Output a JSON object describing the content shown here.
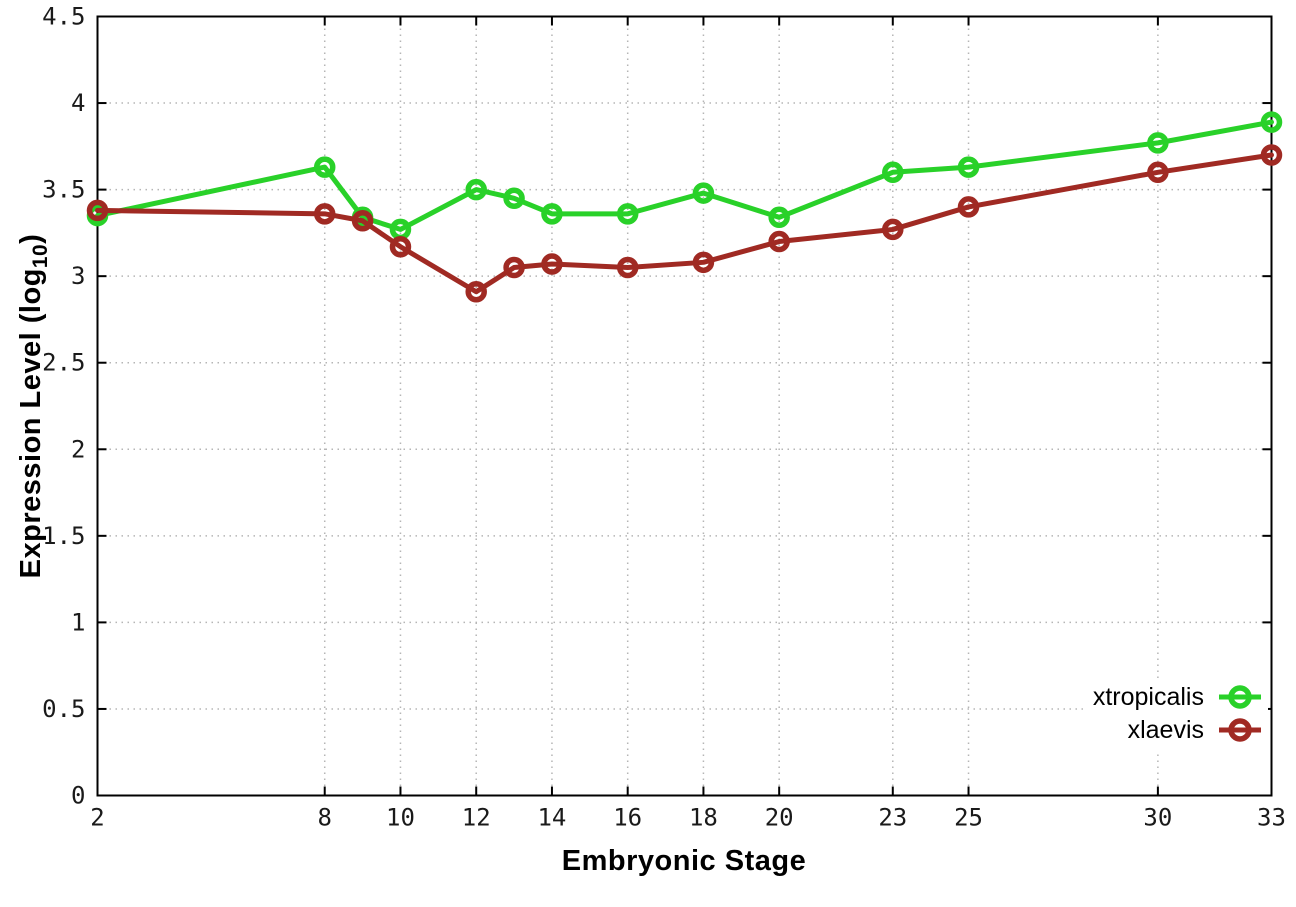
{
  "chart_data": {
    "type": "line",
    "title": "",
    "xlabel": "Embryonic Stage",
    "ylabel": "Expression Level (log10)",
    "ylabel_parts": [
      "Expression Level (log",
      "10",
      ")"
    ],
    "xlim": [
      2,
      33
    ],
    "ylim": [
      0,
      4.5
    ],
    "x_ticks": [
      2,
      8,
      10,
      12,
      14,
      16,
      18,
      20,
      23,
      25,
      30,
      33
    ],
    "x_tick_labels": [
      "2",
      "8",
      "10",
      "12",
      "14",
      "16",
      "18",
      "20",
      "23",
      "25",
      "30",
      "33"
    ],
    "y_ticks": [
      0,
      0.5,
      1,
      1.5,
      2,
      2.5,
      3,
      3.5,
      4,
      4.5
    ],
    "y_tick_labels": [
      "0",
      "0.5",
      "1",
      "1.5",
      "2",
      "2.5",
      "3",
      "3.5",
      "4",
      "4.5"
    ],
    "grid": true,
    "legend_position": "bottom-right-inside",
    "x": [
      2,
      8,
      9,
      10,
      12,
      13,
      14,
      16,
      18,
      20,
      23,
      25,
      30,
      33
    ],
    "series": [
      {
        "name": "xtropicalis",
        "color": "#29d129",
        "marker": "open-circle",
        "values": [
          3.35,
          3.63,
          3.34,
          3.27,
          3.5,
          3.45,
          3.36,
          3.36,
          3.48,
          3.34,
          3.6,
          3.63,
          3.77,
          3.89
        ]
      },
      {
        "name": "xlaevis",
        "color": "#a02a23",
        "marker": "open-circle",
        "values": [
          3.38,
          3.36,
          3.32,
          3.17,
          2.91,
          3.05,
          3.07,
          3.05,
          3.08,
          3.2,
          3.27,
          3.4,
          3.6,
          3.7
        ]
      }
    ]
  },
  "colors": {
    "background": "#ffffff",
    "grid": "#b5b5b5",
    "axis": "#000000",
    "tick_label": "#1a1a1a"
  }
}
